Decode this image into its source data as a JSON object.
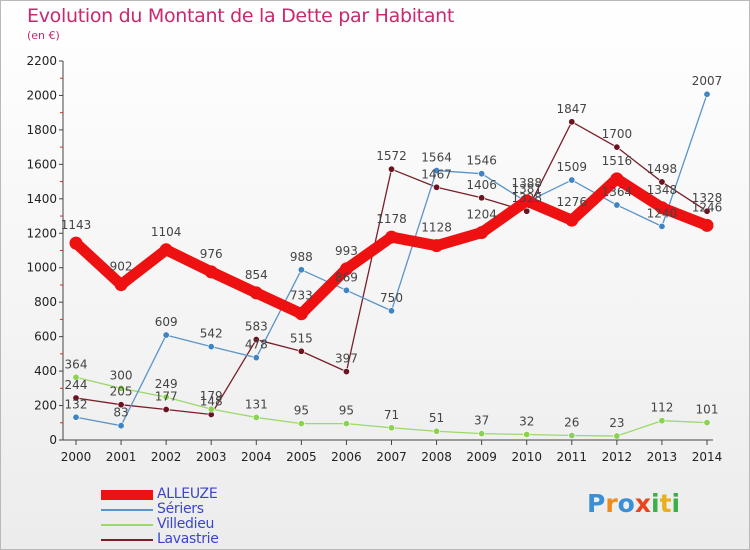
{
  "title": "Evolution du Montant de la Dette par Habitant",
  "subtitle": "(en €)",
  "logo": "Proxiti",
  "chart_data": {
    "type": "line",
    "x": [
      "2000",
      "2001",
      "2002",
      "2003",
      "2004",
      "2005",
      "2006",
      "2007",
      "2008",
      "2009",
      "2010",
      "2011",
      "2012",
      "2013",
      "2014"
    ],
    "ylim": [
      0,
      2200
    ],
    "yticks": [
      0,
      200,
      400,
      600,
      800,
      1000,
      1200,
      1400,
      1600,
      1800,
      2000,
      2200
    ],
    "grid": false,
    "legend_position": "bottom-left",
    "series": [
      {
        "name": "Lavastrie",
        "color": "#7a1f2a",
        "marker": "#6b1420",
        "width": 1.3,
        "values": [
          244,
          205,
          177,
          148,
          583,
          515,
          397,
          1572,
          1467,
          1406,
          1328,
          1847,
          1700,
          1498,
          1328
        ],
        "labels": [
          "244",
          "205",
          "177",
          "148",
          "583",
          "515",
          "397",
          "1572",
          "1467",
          "1406",
          "1328",
          "1847",
          "1700",
          "1498",
          "1328"
        ]
      },
      {
        "name": "Villedieu",
        "color": "#9ad96a",
        "marker": "#8bd152",
        "width": 1.3,
        "values": [
          364,
          300,
          249,
          179,
          131,
          95,
          95,
          71,
          51,
          37,
          32,
          26,
          23,
          112,
          101
        ],
        "labels": [
          "364",
          "300",
          "249",
          "179",
          "131",
          "95",
          "95",
          "71",
          "51",
          "37",
          "32",
          "26",
          "23",
          "112",
          "101"
        ]
      },
      {
        "name": "Sériers",
        "color": "#5b94c8",
        "marker": "#3f85c4",
        "width": 1.3,
        "values": [
          132,
          83,
          609,
          542,
          478,
          988,
          869,
          750,
          1564,
          1546,
          1381,
          1509,
          1364,
          1240,
          2007
        ],
        "labels": [
          "132",
          "83",
          "609",
          "542",
          "478",
          "988",
          "869",
          "750",
          "1564",
          "1546",
          "1381",
          "1509",
          "1364",
          "1240",
          "2007"
        ]
      },
      {
        "name": "ALLEUZE",
        "color": "#ee1111",
        "marker": "#ee1111",
        "width": 11,
        "values": [
          1143,
          902,
          1104,
          976,
          854,
          733,
          993,
          1178,
          1128,
          1204,
          1388,
          1276,
          1516,
          1348,
          1246
        ],
        "labels": [
          "1143",
          "902",
          "1104",
          "976",
          "854",
          "733",
          "993",
          "1178",
          "1128",
          "1204",
          "1388",
          "1276",
          "1516",
          "1348",
          "1246"
        ]
      }
    ]
  },
  "legend": [
    {
      "name": "ALLEUZE",
      "color": "#ee1111",
      "thickness": 10
    },
    {
      "name": "Sériers",
      "color": "#5b94c8",
      "thickness": 2
    },
    {
      "name": "Villedieu",
      "color": "#9ad96a",
      "thickness": 2
    },
    {
      "name": "Lavastrie",
      "color": "#7a1f2a",
      "thickness": 2
    }
  ],
  "logo_colors": [
    "#3b8fd6",
    "#f08a1c",
    "#3b8fd6",
    "#e8451c",
    "#3bb04a",
    "#e8b01c",
    "#3bb04a"
  ]
}
